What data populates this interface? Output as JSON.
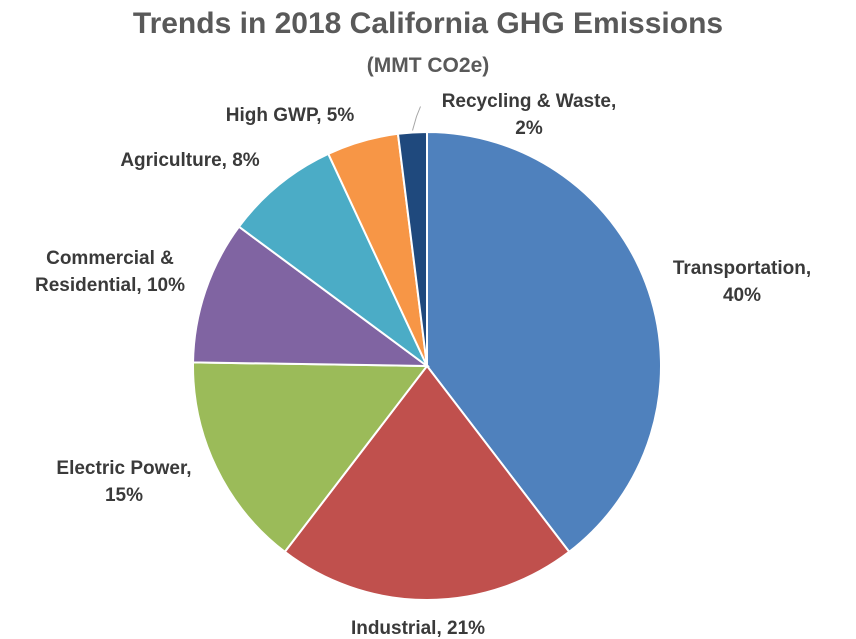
{
  "chart_data": {
    "type": "pie",
    "title": "Trends in 2018 California GHG Emissions",
    "subtitle": "(MMT CO2e)",
    "slices": [
      {
        "name": "Transportation",
        "value": 40,
        "label_lines": [
          "Transportation,",
          "40%"
        ],
        "color": "#4F81BD"
      },
      {
        "name": "Industrial",
        "value": 21,
        "label_lines": [
          "Industrial, 21%"
        ],
        "color": "#C0504D"
      },
      {
        "name": "Electric Power",
        "value": 15,
        "label_lines": [
          "Electric Power,",
          "15%"
        ],
        "color": "#9BBB59"
      },
      {
        "name": "Commercial & Residential",
        "value": 10,
        "label_lines": [
          "Commercial &",
          "Residential, 10%"
        ],
        "color": "#8064A2"
      },
      {
        "name": "Agriculture",
        "value": 8,
        "label_lines": [
          "Agriculture, 8%"
        ],
        "color": "#4BACC6"
      },
      {
        "name": "High GWP",
        "value": 5,
        "label_lines": [
          "High GWP, 5%"
        ],
        "color": "#F79646"
      },
      {
        "name": "Recycling & Waste",
        "value": 2,
        "label_lines": [
          "Recycling & Waste,",
          "2%"
        ],
        "color": "#1F497D"
      }
    ],
    "start": "12 o'clock",
    "direction": "clockwise",
    "legend": "none"
  }
}
